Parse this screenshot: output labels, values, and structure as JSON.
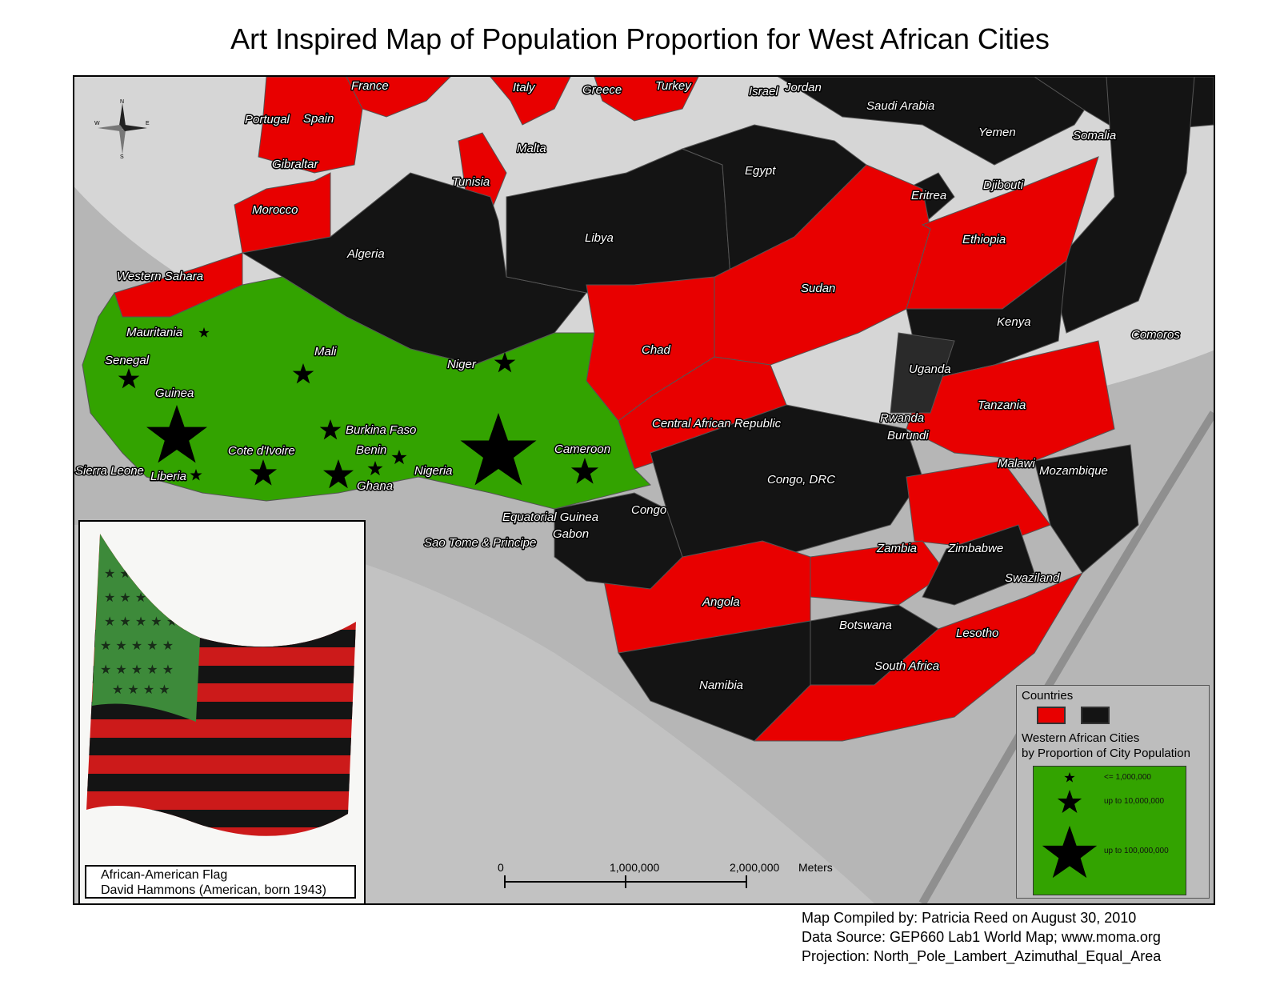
{
  "title": "Art Inspired Map of Population Proportion for West African Cities",
  "colors": {
    "red": "#e80000",
    "black": "#141414",
    "green": "#33a300",
    "ocean": "#b6b6b6",
    "land_outside": "#d9d9d9"
  },
  "map": {
    "labels": {
      "france": "France",
      "italy": "Italy",
      "greece": "Greece",
      "turkey": "Turkey",
      "israel": "Israel",
      "jordan": "Jordan",
      "portugal": "Portugal",
      "spain": "Spain",
      "saudi_arabia": "Saudi Arabia",
      "yemen": "Yemen",
      "somalia": "Somalia",
      "malta": "Malta",
      "gibraltar": "Gibraltar",
      "egypt": "Egypt",
      "tunisia": "Tunisia",
      "eritrea": "Eritrea",
      "djibouti": "Djibouti",
      "morocco": "Morocco",
      "libya": "Libya",
      "ethiopia": "Ethiopia",
      "algeria": "Algeria",
      "western_sahara": "Western Sahara",
      "sudan": "Sudan",
      "mauritania": "Mauritania",
      "kenya": "Kenya",
      "comoros": "Comoros",
      "mali": "Mali",
      "chad": "Chad",
      "senegal": "Senegal",
      "niger": "Niger",
      "uganda": "Uganda",
      "guinea": "Guinea",
      "tanzania": "Tanzania",
      "rwanda": "Rwanda",
      "burkina_faso": "Burkina Faso",
      "central_african_republic": "Central African Republic",
      "burundi": "Burundi",
      "benin": "Benin",
      "cote_divoire": "Cote d'Ivoire",
      "cameroon": "Cameroon",
      "malawi": "Malawi",
      "sierra_leone": "Sierra Leone",
      "nigeria": "Nigeria",
      "mozambique": "Mozambique",
      "liberia": "Liberia",
      "ghana": "Ghana",
      "congo_drc": "Congo, DRC",
      "equatorial_guinea": "Equatorial Guinea",
      "congo": "Congo",
      "gabon": "Gabon",
      "sao_tome": "Sao Tome & Principe",
      "zambia": "Zambia",
      "zimbabwe": "Zimbabwe",
      "swaziland": "Swaziland",
      "angola": "Angola",
      "botswana": "Botswana",
      "lesotho": "Lesotho",
      "south_africa": "South Africa",
      "namibia": "Namibia"
    },
    "compass": {
      "n": "N",
      "s": "S",
      "e": "E",
      "w": "W"
    }
  },
  "inset": {
    "caption_line1": "African-American Flag",
    "caption_line2": "David Hammons (American, born 1943)"
  },
  "scale_bar": {
    "t0": "0",
    "t1": "1,000,000",
    "t2": "2,000,000",
    "unit": "Meters"
  },
  "legend": {
    "header": "Countries",
    "subtitle_line1": "Western African Cities",
    "subtitle_line2": "by Proportion of City Population",
    "class_small": "<= 1,000,000",
    "class_medium": "up to 10,000,000",
    "class_large": "up to 100,000,000"
  },
  "credits": {
    "line1": "Map Compiled by: Patricia Reed on August 30, 2010",
    "line2": "Data Source: GEP660 Lab1 World Map; www.moma.org",
    "line3": "Projection: North_Pole_Lambert_Azimuthal_Equal_Area"
  }
}
